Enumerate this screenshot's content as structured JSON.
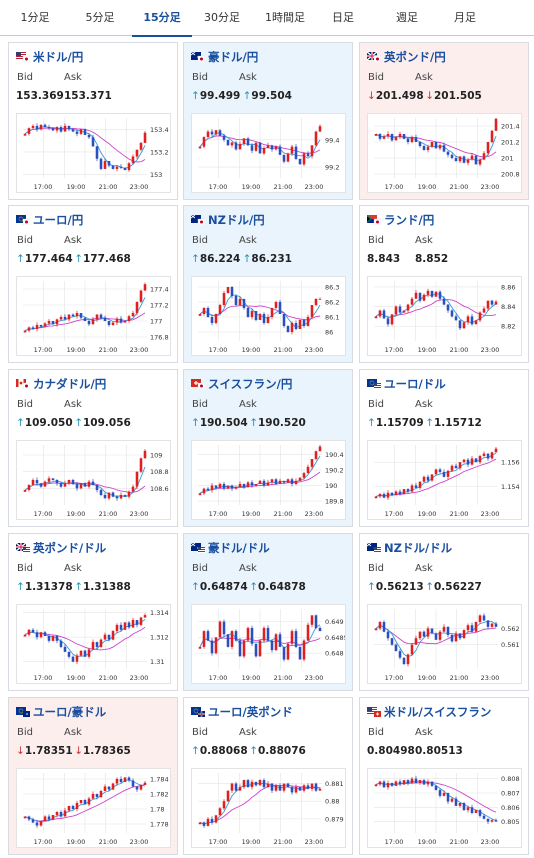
{
  "tabs": [
    {
      "label": "1分足",
      "active": false
    },
    {
      "label": "5分足",
      "active": false
    },
    {
      "label": "15分足",
      "active": true
    },
    {
      "label": "30分足",
      "active": false
    },
    {
      "label": "1時間足",
      "active": false
    },
    {
      "label": "日足",
      "active": false
    },
    {
      "label": "週足",
      "active": false
    },
    {
      "label": "月足",
      "active": false
    }
  ],
  "labels": {
    "bid": "Bid",
    "ask": "Ask"
  },
  "colors": {
    "up": "#2a8fb0",
    "down": "#d03030",
    "candle_up": "#e02020",
    "candle_down": "#2a4fc0",
    "ma_short": "#3a9ad8",
    "ma_long": "#cc44cc"
  },
  "cards": [
    {
      "pair": "米ドル/円",
      "flag": "us-jp-flag-icon",
      "bg": "white",
      "bid_dir": "",
      "ask_dir": "",
      "bid": "153.369",
      "ask": "153.371",
      "chart_data": {
        "type": "candlestick",
        "yticks": [
          "153.4",
          "153.2",
          "153"
        ],
        "xticks": [
          "17:00",
          "19:00",
          "21:00",
          "23:00"
        ],
        "closes": [
          153.36,
          153.41,
          153.43,
          153.4,
          153.44,
          153.42,
          153.41,
          153.39,
          153.42,
          153.38,
          153.43,
          153.4,
          153.38,
          153.36,
          153.4,
          153.35,
          153.33,
          153.25,
          153.14,
          153.05,
          153.12,
          153.08,
          153.05,
          153.07,
          153.06,
          153.04,
          153.1,
          153.16,
          153.22,
          153.28,
          153.37
        ],
        "ylim": [
          152.97,
          153.5
        ]
      }
    },
    {
      "pair": "豪ドル/円",
      "flag": "au-jp-flag-icon",
      "bg": "blue",
      "bid_dir": "up",
      "ask_dir": "up",
      "bid": "99.499",
      "ask": "99.504",
      "chart_data": {
        "type": "candlestick",
        "yticks": [
          "99.4",
          "99.2"
        ],
        "xticks": [
          "17:00",
          "19:00",
          "21:00",
          "23:00"
        ],
        "closes": [
          99.35,
          99.42,
          99.46,
          99.44,
          99.47,
          99.43,
          99.4,
          99.36,
          99.38,
          99.33,
          99.37,
          99.41,
          99.36,
          99.32,
          99.38,
          99.3,
          99.34,
          99.36,
          99.33,
          99.35,
          99.29,
          99.24,
          99.3,
          99.35,
          99.26,
          99.22,
          99.3,
          99.28,
          99.36,
          99.46,
          99.5
        ],
        "ylim": [
          99.12,
          99.56
        ]
      }
    },
    {
      "pair": "英ポンド/円",
      "flag": "gb-jp-flag-icon",
      "bg": "pink",
      "bid_dir": "down",
      "ask_dir": "down",
      "bid": "201.498",
      "ask": "201.505",
      "chart_data": {
        "type": "candlestick",
        "yticks": [
          "201.4",
          "201.2",
          "201",
          "200.8"
        ],
        "xticks": [
          "17:00",
          "19:00",
          "21:00",
          "23:00"
        ],
        "closes": [
          201.3,
          201.24,
          201.27,
          201.3,
          201.22,
          201.26,
          201.3,
          201.24,
          201.2,
          201.26,
          201.2,
          201.15,
          201.1,
          201.14,
          201.2,
          201.12,
          201.16,
          201.08,
          201.04,
          201.0,
          200.96,
          201.02,
          200.94,
          200.98,
          201.03,
          200.92,
          200.98,
          201.06,
          201.2,
          201.34,
          201.49
        ],
        "ylim": [
          200.75,
          201.5
        ]
      }
    },
    {
      "pair": "ユーロ/円",
      "flag": "eu-jp-flag-icon",
      "bg": "white",
      "bid_dir": "up",
      "ask_dir": "up",
      "bid": "177.464",
      "ask": "177.468",
      "chart_data": {
        "type": "candlestick",
        "yticks": [
          "177.4",
          "177.2",
          "177",
          "176.8"
        ],
        "xticks": [
          "17:00",
          "19:00",
          "21:00",
          "23:00"
        ],
        "closes": [
          176.88,
          176.92,
          176.9,
          176.95,
          176.93,
          176.97,
          177.0,
          176.96,
          177.02,
          177.05,
          177.02,
          177.08,
          177.06,
          177.1,
          177.04,
          177.0,
          176.96,
          177.02,
          177.08,
          177.04,
          177.0,
          176.95,
          176.98,
          177.03,
          176.98,
          177.0,
          177.06,
          177.1,
          177.24,
          177.38,
          177.46
        ],
        "ylim": [
          176.75,
          177.5
        ]
      }
    },
    {
      "pair": "NZドル/円",
      "flag": "nz-jp-flag-icon",
      "bg": "blue",
      "bid_dir": "up",
      "ask_dir": "up",
      "bid": "86.224",
      "ask": "86.231",
      "chart_data": {
        "type": "candlestick",
        "yticks": [
          "86.3",
          "86.2",
          "86.1",
          "86"
        ],
        "xticks": [
          "17:00",
          "19:00",
          "21:00",
          "23:00"
        ],
        "closes": [
          86.12,
          86.16,
          86.1,
          86.06,
          86.12,
          86.18,
          86.26,
          86.3,
          86.24,
          86.18,
          86.22,
          86.16,
          86.1,
          86.14,
          86.08,
          86.12,
          86.06,
          86.1,
          86.16,
          86.2,
          86.12,
          86.04,
          86.0,
          86.06,
          86.02,
          86.08,
          86.04,
          86.1,
          86.18,
          86.22,
          86.22
        ],
        "ylim": [
          85.94,
          86.34
        ]
      }
    },
    {
      "pair": "ランド/円",
      "flag": "za-jp-flag-icon",
      "bg": "white",
      "bid_dir": "",
      "ask_dir": "",
      "bid": "8.843",
      "ask": "8.852",
      "chart_data": {
        "type": "candlestick",
        "yticks": [
          "8.86",
          "8.84",
          "8.82"
        ],
        "xticks": [
          "17:00",
          "19:00",
          "21:00",
          "23:00"
        ],
        "closes": [
          8.83,
          8.836,
          8.828,
          8.822,
          8.832,
          8.84,
          8.834,
          8.836,
          8.842,
          8.848,
          8.854,
          8.846,
          8.852,
          8.856,
          8.85,
          8.855,
          8.848,
          8.842,
          8.836,
          8.83,
          8.826,
          8.818,
          8.824,
          8.83,
          8.822,
          8.826,
          8.834,
          8.838,
          8.846,
          8.842,
          8.845
        ],
        "ylim": [
          8.805,
          8.866
        ]
      }
    },
    {
      "pair": "カナダドル/円",
      "flag": "ca-jp-flag-icon",
      "bg": "white",
      "bid_dir": "up",
      "ask_dir": "up",
      "bid": "109.050",
      "ask": "109.056",
      "chart_data": {
        "type": "candlestick",
        "yticks": [
          "109",
          "108.8",
          "108.6"
        ],
        "xticks": [
          "17:00",
          "19:00",
          "21:00",
          "23:00"
        ],
        "closes": [
          108.58,
          108.64,
          108.7,
          108.66,
          108.62,
          108.68,
          108.72,
          108.7,
          108.66,
          108.62,
          108.66,
          108.7,
          108.65,
          108.6,
          108.66,
          108.62,
          108.68,
          108.64,
          108.58,
          108.52,
          108.48,
          108.55,
          108.5,
          108.48,
          108.52,
          108.5,
          108.56,
          108.62,
          108.8,
          108.96,
          109.05
        ],
        "ylim": [
          108.4,
          109.12
        ]
      }
    },
    {
      "pair": "スイスフラン/円",
      "flag": "ch-jp-flag-icon",
      "bg": "blue",
      "bid_dir": "up",
      "ask_dir": "up",
      "bid": "190.504",
      "ask": "190.520",
      "chart_data": {
        "type": "candlestick",
        "yticks": [
          "190.4",
          "190.2",
          "190",
          "189.8"
        ],
        "xticks": [
          "17:00",
          "19:00",
          "21:00",
          "23:00"
        ],
        "closes": [
          189.9,
          189.96,
          189.94,
          190.0,
          189.97,
          190.02,
          189.96,
          190.0,
          189.96,
          189.98,
          190.02,
          189.98,
          190.04,
          190.0,
          190.02,
          190.06,
          190.0,
          190.04,
          190.08,
          190.02,
          190.06,
          190.04,
          190.08,
          190.02,
          190.06,
          190.1,
          190.16,
          190.24,
          190.34,
          190.44,
          190.5
        ],
        "ylim": [
          189.75,
          190.52
        ]
      }
    },
    {
      "pair": "ユーロ/ドル",
      "flag": "eu-us-flag-icon",
      "bg": "white",
      "bid_dir": "up",
      "ask_dir": "up",
      "bid": "1.15709",
      "ask": "1.15712",
      "chart_data": {
        "type": "candlestick",
        "yticks": [
          "1.156",
          "1.154"
        ],
        "xticks": [
          "17:00",
          "19:00",
          "21:00",
          "23:00"
        ],
        "closes": [
          1.1532,
          1.1534,
          1.1531,
          1.1535,
          1.1533,
          1.1536,
          1.1534,
          1.1538,
          1.1536,
          1.1541,
          1.1539,
          1.1544,
          1.1548,
          1.1545,
          1.155,
          1.1554,
          1.1552,
          1.1548,
          1.1553,
          1.1557,
          1.1555,
          1.156,
          1.1562,
          1.1558,
          1.1563,
          1.156,
          1.1565,
          1.1567,
          1.1563,
          1.1568,
          1.1571
        ],
        "ylim": [
          1.1525,
          1.1574
        ]
      }
    },
    {
      "pair": "英ポンド/ドル",
      "flag": "gb-us-flag-icon",
      "bg": "white",
      "bid_dir": "up",
      "ask_dir": "up",
      "bid": "1.31378",
      "ask": "1.31388",
      "chart_data": {
        "type": "candlestick",
        "yticks": [
          "1.314",
          "1.312",
          "1.31"
        ],
        "xticks": [
          "17:00",
          "19:00",
          "21:00",
          "23:00"
        ],
        "closes": [
          1.3122,
          1.3126,
          1.3124,
          1.312,
          1.3124,
          1.3121,
          1.3117,
          1.3121,
          1.3117,
          1.3112,
          1.3108,
          1.3104,
          1.31,
          1.3105,
          1.3109,
          1.3104,
          1.311,
          1.3116,
          1.3112,
          1.3118,
          1.3122,
          1.3118,
          1.3125,
          1.313,
          1.3126,
          1.3132,
          1.3128,
          1.3134,
          1.313,
          1.3136,
          1.3138
        ],
        "ylim": [
          1.3094,
          1.3143
        ]
      }
    },
    {
      "pair": "豪ドル/ドル",
      "flag": "au-us-flag-icon",
      "bg": "blue",
      "bid_dir": "up",
      "ask_dir": "up",
      "bid": "0.64874",
      "ask": "0.64878",
      "chart_data": {
        "type": "candlestick",
        "yticks": [
          "0.649",
          "0.6485",
          "0.648"
        ],
        "xticks": [
          "17:00",
          "19:00",
          "21:00",
          "23:00"
        ],
        "closes": [
          0.6482,
          0.6487,
          0.6484,
          0.648,
          0.6485,
          0.649,
          0.6486,
          0.6482,
          0.6487,
          0.6484,
          0.6479,
          0.6484,
          0.6488,
          0.6483,
          0.6479,
          0.6484,
          0.6488,
          0.6484,
          0.6481,
          0.6486,
          0.6482,
          0.6478,
          0.6483,
          0.6487,
          0.6482,
          0.6478,
          0.6484,
          0.6489,
          0.6492,
          0.6488,
          0.6487
        ],
        "ylim": [
          0.6475,
          0.6494
        ]
      }
    },
    {
      "pair": "NZドル/ドル",
      "flag": "nz-us-flag-icon",
      "bg": "white",
      "bid_dir": "up",
      "ask_dir": "up",
      "bid": "0.56213",
      "ask": "0.56227",
      "chart_data": {
        "type": "candlestick",
        "yticks": [
          "0.562",
          "0.561"
        ],
        "xticks": [
          "17:00",
          "19:00",
          "21:00",
          "23:00"
        ],
        "closes": [
          0.562,
          0.5624,
          0.5618,
          0.5614,
          0.561,
          0.5606,
          0.5602,
          0.5598,
          0.5604,
          0.561,
          0.5614,
          0.5618,
          0.5615,
          0.562,
          0.5617,
          0.5613,
          0.5618,
          0.5621,
          0.5616,
          0.5612,
          0.5617,
          0.5614,
          0.5619,
          0.5622,
          0.5618,
          0.5624,
          0.5628,
          0.5625,
          0.5621,
          0.5623,
          0.5621
        ],
        "ylim": [
          0.5595,
          0.5632
        ]
      }
    },
    {
      "pair": "ユーロ/豪ドル",
      "flag": "eu-au-flag-icon",
      "bg": "pink",
      "bid_dir": "down",
      "ask_dir": "down",
      "bid": "1.78351",
      "ask": "1.78365",
      "chart_data": {
        "type": "candlestick",
        "yticks": [
          "1.784",
          "1.782",
          "1.78",
          "1.778"
        ],
        "xticks": [
          "17:00",
          "19:00",
          "21:00",
          "23:00"
        ],
        "closes": [
          1.779,
          1.7786,
          1.7782,
          1.7778,
          1.7784,
          1.779,
          1.7786,
          1.7792,
          1.7796,
          1.779,
          1.7798,
          1.7804,
          1.78,
          1.7808,
          1.7812,
          1.7806,
          1.7814,
          1.782,
          1.7816,
          1.7824,
          1.783,
          1.7826,
          1.7834,
          1.784,
          1.7836,
          1.7842,
          1.7838,
          1.783,
          1.7826,
          1.7832,
          1.7835
        ],
        "ylim": [
          1.7768,
          1.7848
        ]
      }
    },
    {
      "pair": "ユーロ/英ポンド",
      "flag": "eu-gb-flag-icon",
      "bg": "white",
      "bid_dir": "up",
      "ask_dir": "up",
      "bid": "0.88068",
      "ask": "0.88076",
      "chart_data": {
        "type": "candlestick",
        "yticks": [
          "0.881",
          "0.88",
          "0.879"
        ],
        "xticks": [
          "17:00",
          "19:00",
          "21:00",
          "23:00"
        ],
        "closes": [
          0.8788,
          0.8786,
          0.879,
          0.8788,
          0.8792,
          0.8796,
          0.88,
          0.8806,
          0.881,
          0.8806,
          0.8808,
          0.8812,
          0.8808,
          0.8811,
          0.8809,
          0.8812,
          0.8808,
          0.881,
          0.8806,
          0.8809,
          0.8806,
          0.881,
          0.8808,
          0.8805,
          0.8808,
          0.8806,
          0.8809,
          0.8807,
          0.881,
          0.8806,
          0.8807
        ],
        "ylim": [
          0.8782,
          0.8816
        ]
      }
    },
    {
      "pair": "米ドル/スイスフラン",
      "flag": "us-ch-flag-icon",
      "bg": "white",
      "bid_dir": "",
      "ask_dir": "",
      "bid": "0.80498",
      "ask": "0.80513",
      "chart_data": {
        "type": "candlestick",
        "yticks": [
          "0.808",
          "0.807",
          "0.806",
          "0.805"
        ],
        "xticks": [
          "17:00",
          "19:00",
          "21:00",
          "23:00"
        ],
        "closes": [
          0.8076,
          0.8078,
          0.8074,
          0.8077,
          0.8075,
          0.8078,
          0.8076,
          0.8079,
          0.8077,
          0.808,
          0.8077,
          0.8079,
          0.8076,
          0.8078,
          0.8075,
          0.8072,
          0.8068,
          0.807,
          0.8064,
          0.8066,
          0.8061,
          0.8063,
          0.8058,
          0.806,
          0.8056,
          0.8058,
          0.8054,
          0.8052,
          0.805,
          0.8051,
          0.805
        ],
        "ylim": [
          0.8042,
          0.8084
        ]
      }
    }
  ]
}
